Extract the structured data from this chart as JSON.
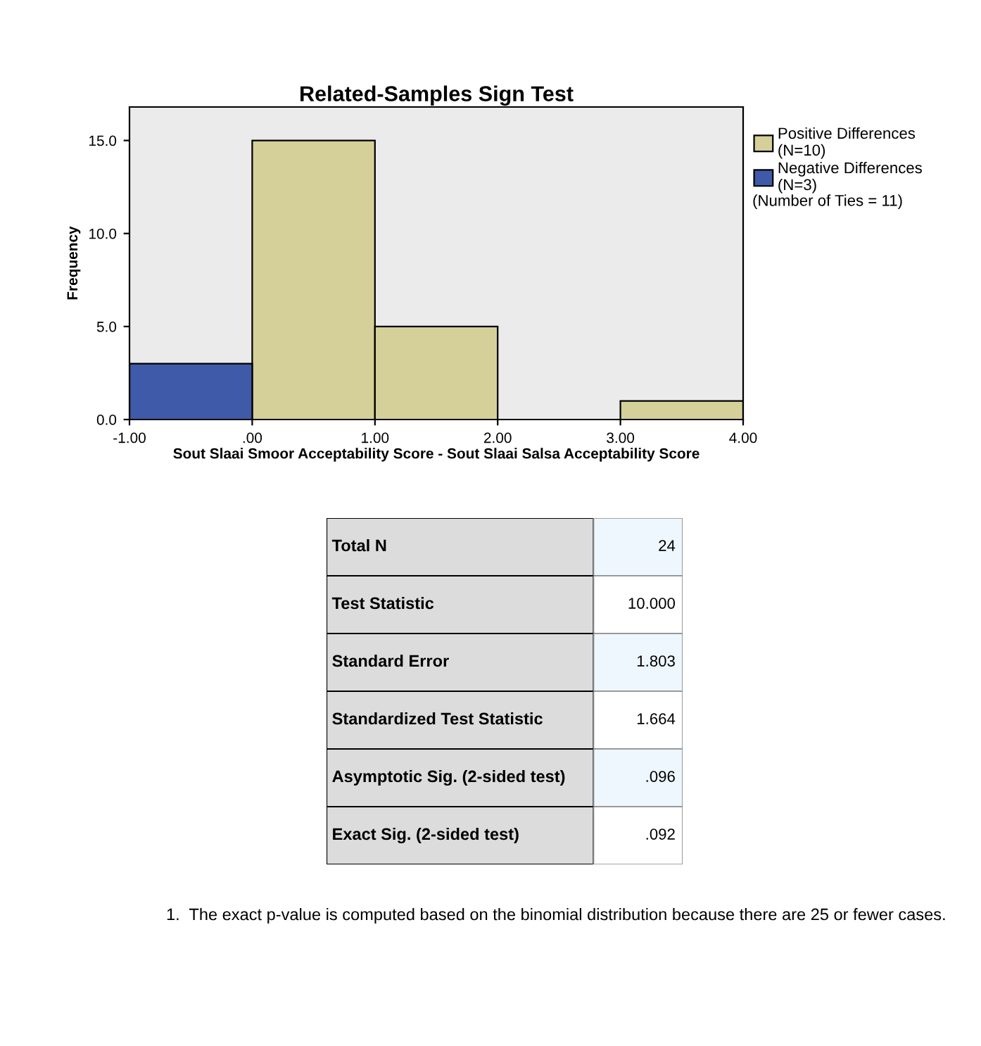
{
  "chart_data": [
    {
      "type": "histogram",
      "title": "Related-Samples Sign Test",
      "xlabel": "Sout Slaai Smoor Acceptability Score - Sout Slaai Salsa Acceptability Score",
      "ylabel": "Frequency",
      "bins": [
        -1,
        0,
        1,
        2,
        3,
        4
      ],
      "series": [
        {
          "name": "Positive Differences\n(N=10)",
          "color": "#d5d09a",
          "values": [
            null,
            15,
            5,
            0,
            1
          ]
        },
        {
          "name": "Negative Differences\n(N=3)",
          "color": "#3f5aa8",
          "values": [
            3,
            null,
            null,
            null,
            null
          ]
        }
      ],
      "xlim": [
        -1,
        4
      ],
      "xticks": [
        {
          "value": -1,
          "label": "-1.00"
        },
        {
          "value": 0,
          "label": ".00"
        },
        {
          "value": 1,
          "label": "1.00"
        },
        {
          "value": 2,
          "label": "2.00"
        },
        {
          "value": 3,
          "label": "3.00"
        },
        {
          "value": 4,
          "label": "4.00"
        }
      ],
      "ylim": [
        0,
        16.8
      ],
      "yticks": [
        {
          "value": 0,
          "label": "0.0"
        },
        {
          "value": 5,
          "label": "5.0"
        },
        {
          "value": 10,
          "label": "10.0"
        },
        {
          "value": 15,
          "label": "15.0"
        }
      ],
      "legend": "right",
      "grid": false,
      "annotations": [
        "(Number of Ties = 11)"
      ]
    },
    {
      "type": "other",
      "annotations": [
        "Total N",
        "24",
        "Test Statistic",
        "10.000",
        "Standard Error",
        "1.803",
        "Standardized Test Statistic",
        "1.664",
        "Asymptotic Sig. (2-sided test)",
        ".096",
        "Exact Sig. (2-sided test)",
        ".092",
        "1.  The exact p-value is computed based on the binomial distribution because there are 25 or fewer cases."
      ]
    }
  ]
}
